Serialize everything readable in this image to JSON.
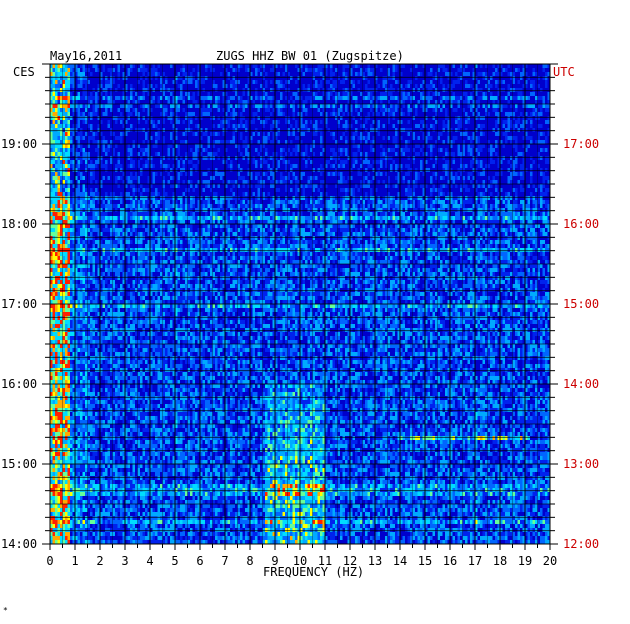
{
  "chart_data": {
    "type": "heatmap",
    "date_label": "May16,2011",
    "title": "ZUGS HHZ BW 01 (Zugspitze)",
    "left_timezone": "CES",
    "right_timezone": "UTC",
    "xlabel": "FREQUENCY (HZ)",
    "x_range": [
      0,
      20
    ],
    "x_ticks": [
      "0",
      "1",
      "2",
      "3",
      "4",
      "5",
      "6",
      "7",
      "8",
      "9",
      "10",
      "11",
      "12",
      "13",
      "14",
      "15",
      "16",
      "17",
      "18",
      "19",
      "20"
    ],
    "y_left_ticks": [
      "19:00",
      "18:00",
      "17:00",
      "16:00",
      "15:00",
      "14:00"
    ],
    "y_right_ticks": [
      "17:00",
      "16:00",
      "15:00",
      "14:00",
      "13:00",
      "12:00"
    ],
    "y_left_range": [
      "14:00",
      "19:55"
    ],
    "y_right_range": [
      "12:00",
      "17:55"
    ],
    "colors": {
      "background": "#0000cc",
      "low": "#0022ee",
      "mid": "#00aaff",
      "high": "#ffff00",
      "peak": "#ff2000",
      "grid": "#000000",
      "right_axis_text": "#cc0000"
    },
    "features": [
      {
        "name": "low-frequency band",
        "freq_hz": [
          0,
          0.8
        ],
        "intensity": "high"
      },
      {
        "name": "broadband energy",
        "freq_hz": [
          8.5,
          11
        ],
        "time_local": [
          "14:00",
          "16:00"
        ],
        "intensity": "high"
      },
      {
        "name": "narrow line",
        "freq_hz": [
          13.8,
          19.2
        ],
        "time_local": "15:20",
        "intensity": "medium"
      },
      {
        "name": "quiet period",
        "time_local": [
          "18:15",
          "19:55"
        ],
        "intensity": "low"
      }
    ]
  },
  "footer_mark": "*"
}
